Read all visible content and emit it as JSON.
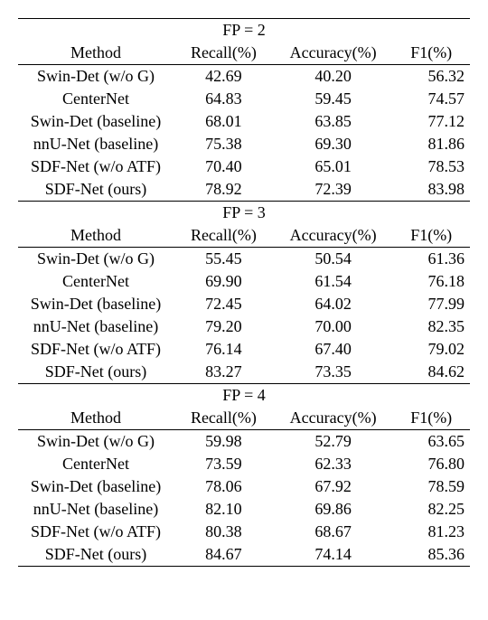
{
  "colors": {
    "background": "#ffffff",
    "text": "#000000",
    "rule": "#000000"
  },
  "typography": {
    "font_family": "Times New Roman, serif",
    "font_size_pt": 13.5
  },
  "columns": {
    "method": "Method",
    "recall": "Recall(%)",
    "accuracy": "Accuracy(%)",
    "f1": "F1(%)"
  },
  "blocks": [
    {
      "header": "FP = 2",
      "rows": [
        {
          "method": "Swin-Det (w/o G)",
          "recall": "42.69",
          "accuracy": "40.20",
          "f1": "56.32",
          "bold": false
        },
        {
          "method": "CenterNet",
          "recall": "64.83",
          "accuracy": "59.45",
          "f1": "74.57",
          "bold": false
        },
        {
          "method": "Swin-Det (baseline)",
          "recall": "68.01",
          "accuracy": "63.85",
          "f1": "77.12",
          "bold": false
        },
        {
          "method": "nnU-Net (baseline)",
          "recall": "75.38",
          "accuracy": "69.30",
          "f1": "81.86",
          "bold": false
        },
        {
          "method": "SDF-Net (w/o ATF)",
          "recall": "70.40",
          "accuracy": "65.01",
          "f1": "78.53",
          "bold": false
        },
        {
          "method": "SDF-Net (ours)",
          "recall": "78.92",
          "accuracy": "72.39",
          "f1": "83.98",
          "bold": true
        }
      ]
    },
    {
      "header": "FP = 3",
      "rows": [
        {
          "method": "Swin-Det (w/o G)",
          "recall": "55.45",
          "accuracy": "50.54",
          "f1": "61.36",
          "bold": false
        },
        {
          "method": "CenterNet",
          "recall": "69.90",
          "accuracy": "61.54",
          "f1": "76.18",
          "bold": false
        },
        {
          "method": "Swin-Det (baseline)",
          "recall": "72.45",
          "accuracy": "64.02",
          "f1": "77.99",
          "bold": false
        },
        {
          "method": "nnU-Net (baseline)",
          "recall": "79.20",
          "accuracy": "70.00",
          "f1": "82.35",
          "bold": false
        },
        {
          "method": "SDF-Net (w/o ATF)",
          "recall": "76.14",
          "accuracy": "67.40",
          "f1": "79.02",
          "bold": false
        },
        {
          "method": "SDF-Net (ours)",
          "recall": "83.27",
          "accuracy": "73.35",
          "f1": "84.62",
          "bold": true
        }
      ]
    },
    {
      "header": "FP = 4",
      "rows": [
        {
          "method": "Swin-Det (w/o G)",
          "recall": "59.98",
          "accuracy": "52.79",
          "f1": "63.65",
          "bold": false
        },
        {
          "method": "CenterNet",
          "recall": "73.59",
          "accuracy": "62.33",
          "f1": "76.80",
          "bold": false
        },
        {
          "method": "Swin-Det (baseline)",
          "recall": "78.06",
          "accuracy": "67.92",
          "f1": "78.59",
          "bold": false
        },
        {
          "method": "nnU-Net (baseline)",
          "recall": "82.10",
          "accuracy": "69.86",
          "f1": "82.25",
          "bold": false
        },
        {
          "method": "SDF-Net (w/o ATF)",
          "recall": "80.38",
          "accuracy": "68.67",
          "f1": "81.23",
          "bold": false
        },
        {
          "method": "SDF-Net (ours)",
          "recall": "84.67",
          "accuracy": "74.14",
          "f1": "85.36",
          "bold": true
        }
      ]
    }
  ]
}
